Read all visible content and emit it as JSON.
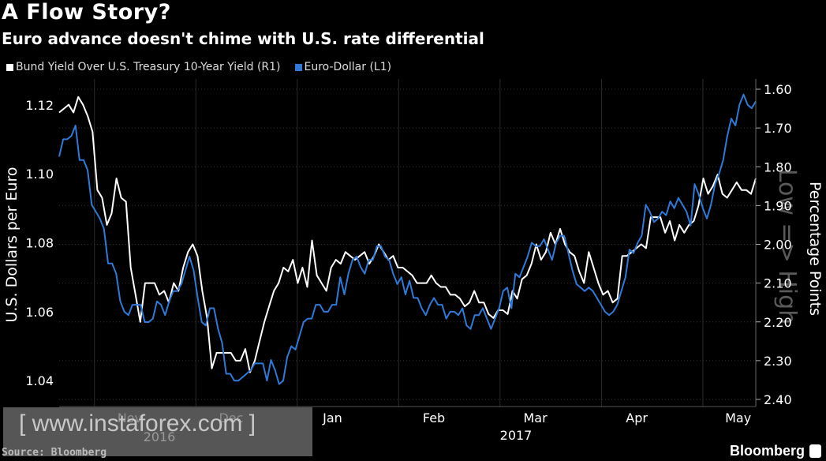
{
  "title": "A Flow Story?",
  "subtitle": "Euro advance doesn't chime with U.S. rate differential",
  "source": "Source: Bloomberg",
  "brand": "Bloomberg",
  "watermark": "[ www.instaforex.com ]",
  "colors": {
    "background": "#000000",
    "bund_series": "#ffffff",
    "eur_series": "#2f7ad9"
  },
  "chart_data": {
    "type": "line",
    "legend": [
      {
        "label": "Bund Yield Over U.S. Treasury 10-Year Yield (R1)",
        "color": "#ffffff"
      },
      {
        "label": "Euro-Dollar (L1)",
        "color": "#2f7ad9"
      }
    ],
    "xlabels": [
      "Nov",
      "Dec",
      "Jan",
      "Feb",
      "Mar",
      "Apr",
      "May"
    ],
    "year_label": "2017",
    "watermark_xlabel": "2016",
    "left_axis": {
      "label": "U.S. Dollars per Euro",
      "ticks": [
        "1.04",
        "1.06",
        "1.08",
        "1.10",
        "1.12"
      ],
      "range": [
        1.0325,
        1.1275
      ]
    },
    "right_axis": {
      "label": "Percentage Points",
      "inverted": true,
      "ticks": [
        "1.60",
        "1.70",
        "1.80",
        "1.90",
        "2.00",
        "2.10",
        "2.20",
        "2.30",
        "2.40"
      ],
      "range": [
        1.6,
        2.4
      ],
      "watermark_text": "Low => High"
    },
    "x_range": [
      0,
      158
    ],
    "month_starts": [
      11,
      34,
      57,
      80,
      103,
      126,
      149
    ],
    "series": [
      {
        "name": "Bund Yield Over U.S. Treasury 10-Year Yield",
        "axis": "right",
        "color": "#ffffff",
        "values": [
          1.66,
          1.65,
          1.64,
          1.66,
          1.62,
          1.64,
          1.67,
          1.71,
          1.86,
          1.88,
          1.95,
          1.92,
          1.83,
          1.88,
          1.89,
          2.06,
          2.13,
          2.2,
          2.1,
          2.1,
          2.1,
          2.13,
          2.12,
          2.15,
          2.1,
          2.12,
          2.06,
          2.02,
          2.0,
          2.03,
          2.12,
          2.19,
          2.32,
          2.28,
          2.28,
          2.28,
          2.28,
          2.3,
          2.3,
          2.27,
          2.33,
          2.3,
          2.25,
          2.2,
          2.16,
          2.12,
          2.1,
          2.06,
          2.07,
          2.04,
          2.1,
          2.06,
          2.11,
          1.99,
          2.08,
          2.1,
          2.12,
          2.06,
          2.04,
          2.05,
          2.02,
          2.03,
          2.04,
          2.03,
          2.02,
          2.05,
          2.03,
          2.0,
          2.02,
          2.04,
          2.03,
          2.06,
          2.06,
          2.07,
          2.08,
          2.1,
          2.1,
          2.1,
          2.08,
          2.1,
          2.11,
          2.11,
          2.13,
          2.13,
          2.14,
          2.16,
          2.15,
          2.12,
          2.15,
          2.15,
          2.18,
          2.19,
          2.17,
          2.17,
          2.18,
          2.12,
          2.14,
          2.09,
          2.08,
          2.05,
          2.0,
          2.04,
          2.02,
          1.97,
          2.0,
          1.96,
          2.0,
          2.02,
          2.03,
          2.07,
          2.1,
          2.02,
          2.06,
          2.1,
          2.13,
          2.12,
          2.15,
          2.14,
          2.03,
          2.03,
          2.02,
          2.01,
          2.0,
          2.01,
          1.93,
          1.93,
          1.93,
          1.97,
          1.94,
          1.99,
          1.95,
          1.97,
          1.95,
          1.94,
          1.9,
          1.83,
          1.87,
          1.85,
          1.82,
          1.87,
          1.88,
          1.86,
          1.84,
          1.86,
          1.86,
          1.87,
          1.83
        ]
      },
      {
        "name": "Euro-Dollar",
        "axis": "left",
        "color": "#2f7ad9",
        "values": [
          1.105,
          1.11,
          1.11,
          1.111,
          1.114,
          1.104,
          1.104,
          1.101,
          1.091,
          1.089,
          1.087,
          1.084,
          1.074,
          1.074,
          1.071,
          1.063,
          1.06,
          1.059,
          1.062,
          1.062,
          1.062,
          1.057,
          1.057,
          1.058,
          1.063,
          1.062,
          1.059,
          1.063,
          1.066,
          1.066,
          1.068,
          1.072,
          1.076,
          1.072,
          1.064,
          1.057,
          1.056,
          1.061,
          1.061,
          1.055,
          1.051,
          1.042,
          1.042,
          1.04,
          1.04,
          1.041,
          1.042,
          1.043,
          1.045,
          1.045,
          1.045,
          1.04,
          1.046,
          1.043,
          1.039,
          1.04,
          1.047,
          1.05,
          1.049,
          1.053,
          1.057,
          1.058,
          1.058,
          1.062,
          1.062,
          1.06,
          1.06,
          1.062,
          1.062,
          1.07,
          1.065,
          1.071,
          1.075,
          1.076,
          1.073,
          1.071,
          1.075,
          1.075,
          1.079,
          1.079,
          1.076,
          1.075,
          1.071,
          1.068,
          1.07,
          1.065,
          1.069,
          1.064,
          1.064,
          1.061,
          1.059,
          1.062,
          1.064,
          1.062,
          1.062,
          1.058,
          1.06,
          1.06,
          1.059,
          1.061,
          1.056,
          1.055,
          1.059,
          1.059,
          1.061,
          1.058,
          1.055,
          1.058,
          1.061,
          1.066,
          1.067,
          1.061,
          1.071,
          1.07,
          1.073,
          1.076,
          1.08,
          1.079,
          1.079,
          1.081,
          1.078,
          1.075,
          1.08,
          1.082,
          1.082,
          1.077,
          1.072,
          1.068,
          1.067,
          1.066,
          1.067,
          1.066,
          1.064,
          1.062,
          1.06,
          1.059,
          1.06,
          1.062,
          1.066,
          1.07,
          1.078,
          1.077,
          1.08,
          1.082,
          1.091,
          1.089,
          1.086,
          1.087,
          1.089,
          1.088,
          1.092,
          1.09,
          1.093,
          1.091,
          1.089,
          1.085,
          1.097,
          1.094,
          1.09,
          1.087,
          1.091,
          1.097,
          1.1,
          1.104,
          1.111,
          1.116,
          1.114,
          1.12,
          1.123,
          1.12,
          1.119,
          1.121
        ]
      }
    ]
  }
}
